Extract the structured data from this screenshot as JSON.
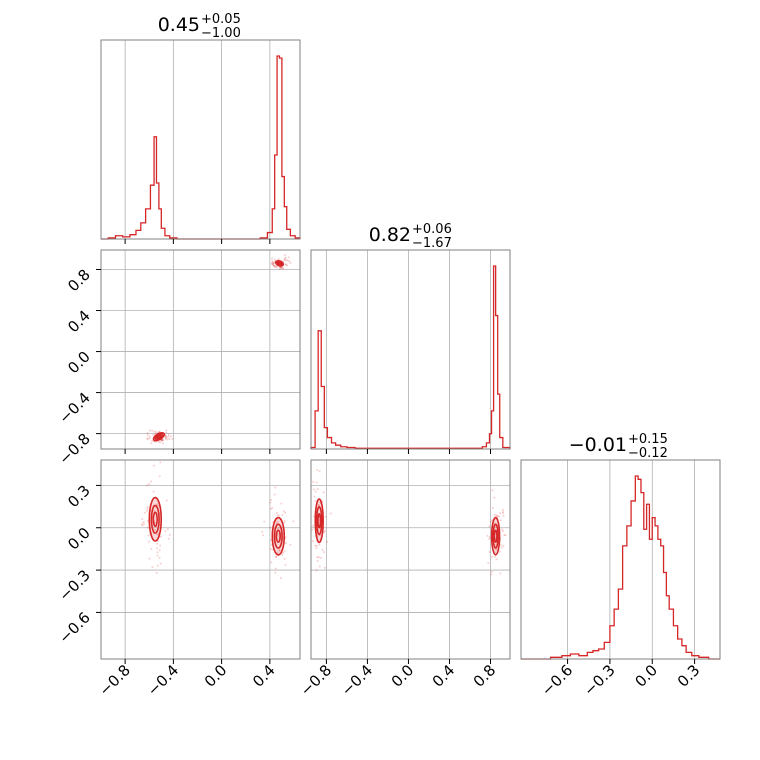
{
  "colors": {
    "accent": "#d62728",
    "grid": "#b0b0b0",
    "frame": "#808080"
  },
  "chart_data": {
    "type": "corner",
    "grid": true,
    "parameters": [
      {
        "title_main": "0.45",
        "title_plus": "+0.05",
        "title_minus": "−1.00",
        "range": [
          -1.0,
          0.65
        ]
      },
      {
        "title_main": "0.82",
        "title_plus": "+0.06",
        "title_minus": "−1.67",
        "range": [
          -0.95,
          0.99
        ]
      },
      {
        "title_main": "−0.01",
        "title_plus": "+0.15",
        "title_minus": "−0.12",
        "range": [
          -0.93,
          0.48
        ]
      }
    ],
    "tick_labels": {
      "x0": [
        "−0.8",
        "−0.4",
        "0.0",
        "0.4"
      ],
      "x1": [
        "−0.8",
        "−0.4",
        "0.0",
        "0.4",
        "0.8"
      ],
      "x2": [
        "−0.6",
        "−0.3",
        "0.0",
        "0.3"
      ],
      "y1": [
        "0.8",
        "0.4",
        "0.0",
        "−0.4",
        "−0.8"
      ],
      "y2": [
        "0.3",
        "0.0",
        "−0.3",
        "−0.6"
      ]
    },
    "tick_values": {
      "x0": [
        -0.8,
        -0.4,
        0.0,
        0.4
      ],
      "x1": [
        -0.8,
        -0.4,
        0.0,
        0.4,
        0.8
      ],
      "x2": [
        -0.6,
        -0.3,
        0.0,
        0.3
      ],
      "y1": [
        0.8,
        0.4,
        0.0,
        -0.4,
        -0.8
      ],
      "y2": [
        0.3,
        0.0,
        -0.3,
        -0.6
      ]
    },
    "histograms": [
      {
        "param": 0,
        "bins": [
          [
            -1.0,
            -0.94,
            0
          ],
          [
            -0.94,
            -0.88,
            1
          ],
          [
            -0.88,
            -0.82,
            3
          ],
          [
            -0.82,
            -0.76,
            2
          ],
          [
            -0.76,
            -0.71,
            4
          ],
          [
            -0.71,
            -0.67,
            8
          ],
          [
            -0.67,
            -0.63,
            15
          ],
          [
            -0.63,
            -0.59,
            28
          ],
          [
            -0.59,
            -0.56,
            50
          ],
          [
            -0.56,
            -0.54,
            95
          ],
          [
            -0.54,
            -0.52,
            52
          ],
          [
            -0.52,
            -0.5,
            28
          ],
          [
            -0.5,
            -0.47,
            10
          ],
          [
            -0.47,
            -0.43,
            3
          ],
          [
            -0.43,
            -0.37,
            1
          ],
          [
            -0.37,
            0.32,
            0
          ],
          [
            0.32,
            0.38,
            1
          ],
          [
            0.38,
            0.42,
            6
          ],
          [
            0.42,
            0.44,
            28
          ],
          [
            0.44,
            0.46,
            78
          ],
          [
            0.46,
            0.48,
            170
          ],
          [
            0.48,
            0.5,
            168
          ],
          [
            0.5,
            0.52,
            58
          ],
          [
            0.52,
            0.54,
            30
          ],
          [
            0.54,
            0.57,
            9
          ],
          [
            0.57,
            0.61,
            3
          ],
          [
            0.61,
            0.65,
            1
          ]
        ]
      },
      {
        "param": 1,
        "bins": [
          [
            -0.95,
            -0.91,
            2
          ],
          [
            -0.91,
            -0.88,
            50
          ],
          [
            -0.88,
            -0.85,
            155
          ],
          [
            -0.85,
            -0.82,
            82
          ],
          [
            -0.82,
            -0.79,
            28
          ],
          [
            -0.79,
            -0.75,
            15
          ],
          [
            -0.75,
            -0.71,
            8
          ],
          [
            -0.71,
            -0.66,
            5
          ],
          [
            -0.66,
            -0.6,
            3
          ],
          [
            -0.6,
            -0.52,
            2
          ],
          [
            -0.52,
            -0.4,
            1
          ],
          [
            -0.4,
            0.6,
            1
          ],
          [
            0.6,
            0.72,
            1
          ],
          [
            0.72,
            0.76,
            3
          ],
          [
            0.76,
            0.79,
            8
          ],
          [
            0.79,
            0.81,
            20
          ],
          [
            0.81,
            0.83,
            50
          ],
          [
            0.83,
            0.85,
            240
          ],
          [
            0.85,
            0.87,
            175
          ],
          [
            0.87,
            0.89,
            72
          ],
          [
            0.89,
            0.92,
            15
          ],
          [
            0.92,
            0.99,
            2
          ]
        ]
      },
      {
        "param": 2,
        "bins": [
          [
            -0.93,
            -0.72,
            0
          ],
          [
            -0.72,
            -0.64,
            1
          ],
          [
            -0.64,
            -0.58,
            2
          ],
          [
            -0.58,
            -0.52,
            3
          ],
          [
            -0.52,
            -0.46,
            2
          ],
          [
            -0.46,
            -0.42,
            4
          ],
          [
            -0.42,
            -0.38,
            5
          ],
          [
            -0.38,
            -0.34,
            6
          ],
          [
            -0.34,
            -0.3,
            10
          ],
          [
            -0.3,
            -0.27,
            20
          ],
          [
            -0.27,
            -0.24,
            30
          ],
          [
            -0.24,
            -0.21,
            42
          ],
          [
            -0.21,
            -0.18,
            68
          ],
          [
            -0.18,
            -0.15,
            80
          ],
          [
            -0.15,
            -0.12,
            95
          ],
          [
            -0.12,
            -0.1,
            110
          ],
          [
            -0.1,
            -0.08,
            108
          ],
          [
            -0.08,
            -0.06,
            100
          ],
          [
            -0.06,
            -0.04,
            78
          ],
          [
            -0.04,
            -0.02,
            93
          ],
          [
            -0.02,
            0.0,
            72
          ],
          [
            0.0,
            0.02,
            85
          ],
          [
            0.02,
            0.04,
            80
          ],
          [
            0.04,
            0.06,
            72
          ],
          [
            0.06,
            0.08,
            68
          ],
          [
            0.08,
            0.1,
            52
          ],
          [
            0.1,
            0.12,
            38
          ],
          [
            0.12,
            0.15,
            30
          ],
          [
            0.15,
            0.18,
            20
          ],
          [
            0.18,
            0.21,
            12
          ],
          [
            0.21,
            0.24,
            8
          ],
          [
            0.24,
            0.28,
            4
          ],
          [
            0.28,
            0.33,
            2
          ],
          [
            0.33,
            0.4,
            1
          ],
          [
            0.4,
            0.48,
            0
          ]
        ]
      }
    ],
    "scatter_panels": [
      {
        "x_param": 0,
        "y_param": 1,
        "clusters": [
          {
            "cx": 0.48,
            "cy": 0.86,
            "rx": 0.03,
            "ry": 0.02,
            "angle": 20
          },
          {
            "cx": -0.52,
            "cy": -0.83,
            "rx": 0.045,
            "ry": 0.025,
            "angle": -30
          }
        ]
      },
      {
        "x_param": 0,
        "y_param": 2,
        "clusters": [
          {
            "cx": -0.55,
            "cy": 0.06,
            "rx": 0.045,
            "ry": 0.14,
            "angle": 0
          },
          {
            "cx": 0.47,
            "cy": -0.06,
            "rx": 0.045,
            "ry": 0.12,
            "angle": 0
          }
        ]
      },
      {
        "x_param": 1,
        "y_param": 2,
        "clusters": [
          {
            "cx": -0.87,
            "cy": 0.05,
            "rx": 0.035,
            "ry": 0.14,
            "angle": 0
          },
          {
            "cx": 0.85,
            "cy": -0.06,
            "rx": 0.035,
            "ry": 0.12,
            "angle": 0
          }
        ]
      }
    ]
  }
}
